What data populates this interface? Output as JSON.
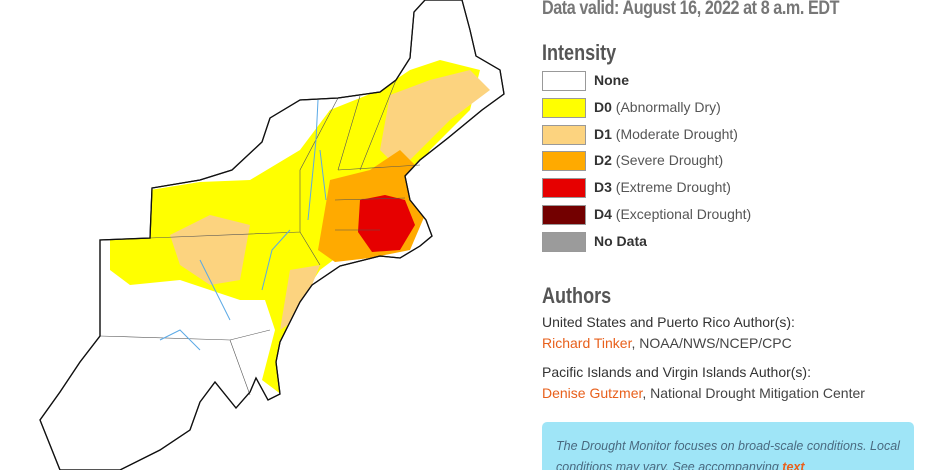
{
  "header": {
    "valid": "Data valid: August 16, 2022 at 8 a.m. EDT"
  },
  "legend": {
    "title": "Intensity",
    "items": [
      {
        "code": "None",
        "color": "#ffffff"
      },
      {
        "code": "D0",
        "label": "(Abnormally Dry)",
        "color": "#ffff00"
      },
      {
        "code": "D1",
        "label": "(Moderate Drought)",
        "color": "#fcd37f"
      },
      {
        "code": "D2",
        "label": "(Severe Drought)",
        "color": "#ffaa00"
      },
      {
        "code": "D3",
        "label": "(Extreme Drought)",
        "color": "#e60000"
      },
      {
        "code": "D4",
        "label": "(Exceptional Drought)",
        "color": "#730000"
      },
      {
        "code": "No Data",
        "color": "#9b9b9b"
      }
    ]
  },
  "authors": {
    "title": "Authors",
    "groups": [
      {
        "heading": "United States and Puerto Rico Author(s):",
        "name": "Richard Tinker",
        "affiliation": ", NOAA/NWS/NCEP/CPC"
      },
      {
        "heading": "Pacific Islands and Virgin Islands Author(s):",
        "name": "Denise Gutzmer",
        "affiliation": ", National Drought Mitigation Center"
      }
    ]
  },
  "note": {
    "text": "The Drought Monitor focuses on broad-scale conditions. Local conditions may vary. See accompanying ",
    "link": "text"
  }
}
